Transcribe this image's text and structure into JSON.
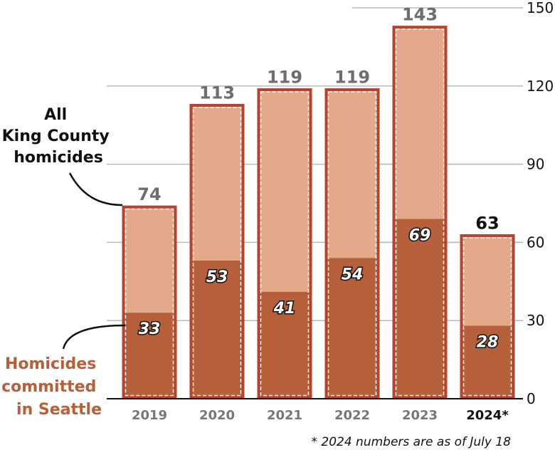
{
  "chart_data": {
    "type": "bar",
    "title": "",
    "xlabel": "",
    "ylabel": "",
    "ylim": [
      0,
      150
    ],
    "yticks": [
      0,
      30,
      60,
      90,
      120,
      150
    ],
    "grid": true,
    "categories": [
      "2019",
      "2020",
      "2021",
      "2022",
      "2023",
      "2024*"
    ],
    "highlight_category": "2024*",
    "series": [
      {
        "name": "All King County homicides",
        "values": [
          74,
          113,
          119,
          119,
          143,
          63
        ],
        "color": "#e3a98a",
        "border": "#b5432f"
      },
      {
        "name": "Homicides committed in Seattle",
        "values": [
          33,
          53,
          41,
          54,
          69,
          28
        ],
        "color": "#b5603a"
      }
    ],
    "annotations": [
      {
        "lines": [
          "All",
          "King County",
          "homicides"
        ],
        "color": "#111111"
      },
      {
        "lines": [
          "Homicides",
          "committed",
          "in Seattle"
        ],
        "color": "#b5603a"
      }
    ],
    "footnote": "* 2024 numbers are as of July 18"
  }
}
